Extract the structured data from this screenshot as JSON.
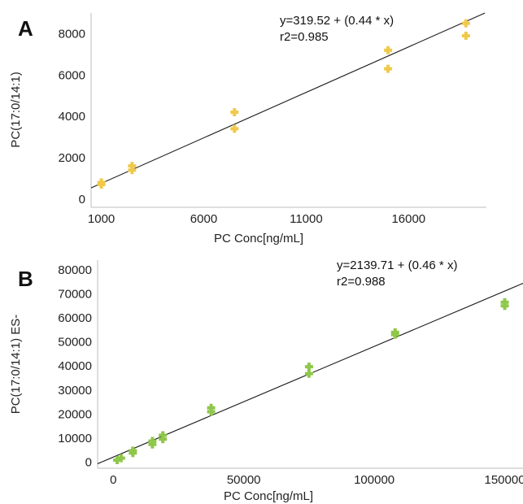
{
  "chart_data": [
    {
      "panel_label": "A",
      "type": "scatter",
      "xlabel": "PC Conc[ng/mL]",
      "ylabel": "PC(17:0/14:1)",
      "xlim": [
        500,
        19800
      ],
      "ylim": [
        -400,
        9000
      ],
      "xticks": [
        "1000",
        "6000",
        "11000",
        "16000"
      ],
      "yticks": [
        "0",
        "2000",
        "4000",
        "6000",
        "8000"
      ],
      "grid": false,
      "marker_color": "#f0c94a",
      "fit": {
        "intercept": 319.52,
        "slope": 0.44,
        "equation": "y=319.52 + (0.44 * x)",
        "r2": "r2=0.985"
      },
      "points": [
        {
          "x": 1000,
          "y": 700
        },
        {
          "x": 1000,
          "y": 800
        },
        {
          "x": 2500,
          "y": 1400
        },
        {
          "x": 2500,
          "y": 1600
        },
        {
          "x": 7500,
          "y": 3400
        },
        {
          "x": 7500,
          "y": 4200
        },
        {
          "x": 15000,
          "y": 6300
        },
        {
          "x": 15000,
          "y": 7200
        },
        {
          "x": 18800,
          "y": 7900
        },
        {
          "x": 18800,
          "y": 8500
        }
      ]
    },
    {
      "panel_label": "B",
      "type": "scatter",
      "xlabel": "PC Conc[ng/mL]",
      "ylabel": "PC(17:0/14:1) ES-",
      "xlim": [
        -6000,
        157000
      ],
      "ylim": [
        -2500,
        84000
      ],
      "xticks": [
        "0",
        "50000",
        "100000",
        "150000"
      ],
      "yticks": [
        "0",
        "10000",
        "20000",
        "30000",
        "40000",
        "50000",
        "60000",
        "70000",
        "80000"
      ],
      "grid": false,
      "marker_color": "#8fc74a",
      "fit": {
        "intercept": 2139.71,
        "slope": 0.46,
        "equation": "y=2139.71 + (0.46 * x)",
        "r2": "r2=0.988"
      },
      "points": [
        {
          "x": 1500,
          "y": 900
        },
        {
          "x": 3000,
          "y": 1700
        },
        {
          "x": 7500,
          "y": 3800
        },
        {
          "x": 7500,
          "y": 4800
        },
        {
          "x": 15000,
          "y": 7400
        },
        {
          "x": 15000,
          "y": 8800
        },
        {
          "x": 19000,
          "y": 9600
        },
        {
          "x": 19000,
          "y": 11200
        },
        {
          "x": 37500,
          "y": 21000
        },
        {
          "x": 37500,
          "y": 22600
        },
        {
          "x": 75000,
          "y": 36800
        },
        {
          "x": 75000,
          "y": 39700
        },
        {
          "x": 108000,
          "y": 53000
        },
        {
          "x": 108000,
          "y": 54000
        },
        {
          "x": 150000,
          "y": 65000
        },
        {
          "x": 150000,
          "y": 66500
        }
      ]
    }
  ]
}
